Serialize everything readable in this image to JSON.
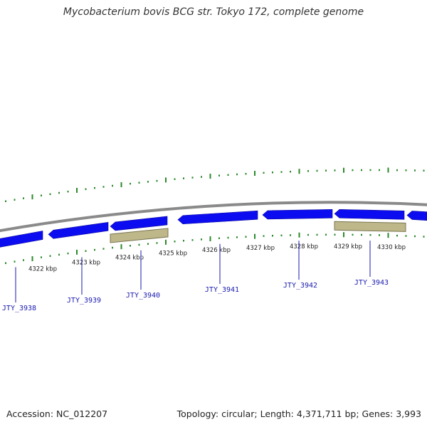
{
  "header": {
    "title": "Mycobacterium bovis BCG str. Tokyo 172, complete genome"
  },
  "footer": {
    "accession": "Accession: NC_012207",
    "summary": "Topology: circular; Length: 4,371,711 bp; Genes: 3,993"
  },
  "map": {
    "colors": {
      "backbone": "#8a8a8a",
      "cds_forward": "#0c0cf0",
      "cds_highlight": "#bdb78a",
      "tick": "#2a8a2a",
      "gene_label": "#1a1ab0"
    },
    "scale_labels": [
      "4322 kbp",
      "4323 kbp",
      "4324 kbp",
      "4325 kbp",
      "4326 kbp",
      "4327 kbp",
      "4328 kbp",
      "4329 kbp",
      "4330 kbp"
    ],
    "gene_labels": [
      "JTY_3938",
      "JTY_3939",
      "JTY_3940",
      "JTY_3941",
      "JTY_3942",
      "JTY_3943"
    ]
  }
}
